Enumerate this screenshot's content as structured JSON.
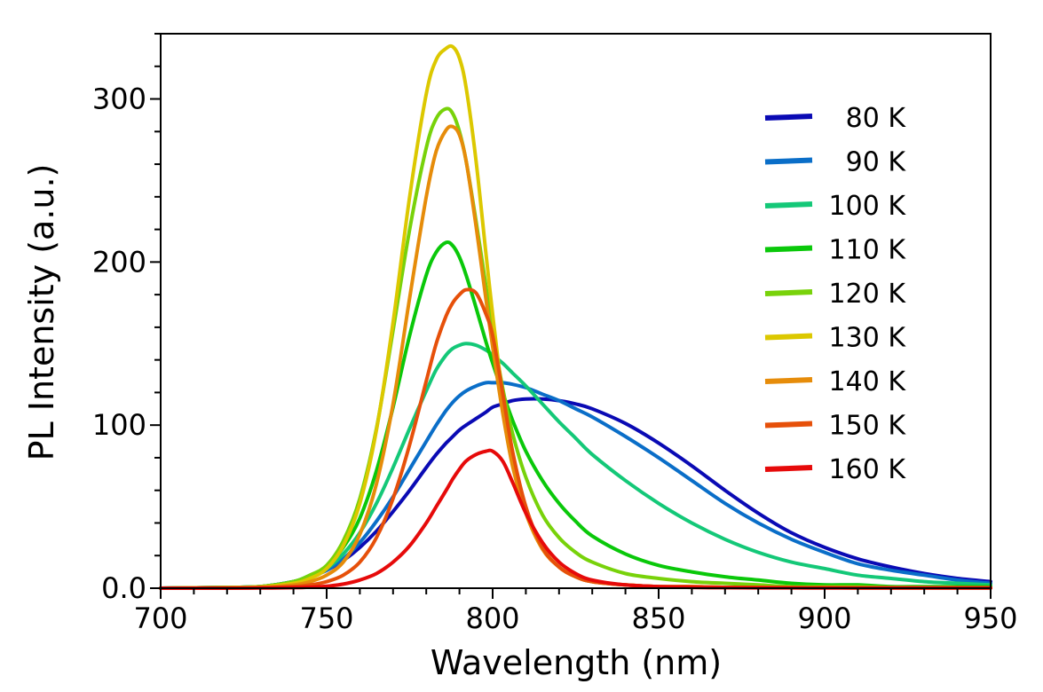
{
  "chart_data": {
    "type": "line",
    "title": "",
    "xlabel": "Wavelength (nm)",
    "ylabel": "PL Intensity (a.u.)",
    "xlim": [
      700,
      950
    ],
    "ylim": [
      0,
      340
    ],
    "x_ticks": [
      700,
      750,
      800,
      850,
      900,
      950
    ],
    "x_tick_labels": [
      "700",
      "750",
      "800",
      "850",
      "900",
      "950"
    ],
    "x_minor_step": 10,
    "y_ticks": [
      0,
      100,
      200,
      300
    ],
    "y_tick_labels": [
      "0.0",
      "100",
      "200",
      "300"
    ],
    "y_minor_step": 20,
    "grid": false,
    "legend_position": "top-right",
    "x": [
      700,
      720,
      730,
      740,
      745,
      750,
      755,
      760,
      765,
      770,
      775,
      780,
      783,
      786,
      788,
      790,
      792,
      795,
      798,
      800,
      803,
      806,
      810,
      815,
      820,
      825,
      830,
      840,
      850,
      860,
      870,
      880,
      890,
      900,
      910,
      920,
      930,
      940,
      950
    ],
    "series": [
      {
        "name": "80 K",
        "color": "#0a0ab4",
        "values": [
          0,
          0.5,
          1,
          4,
          7,
          11,
          17,
          25,
          35,
          47,
          60,
          74,
          82,
          89,
          93,
          97,
          100,
          104,
          108,
          111,
          113,
          115,
          116,
          116,
          115,
          113,
          110,
          101,
          89,
          75,
          60,
          46,
          34,
          25,
          18,
          13,
          9,
          6,
          4
        ]
      },
      {
        "name": "90 K",
        "color": "#0a6ec8",
        "values": [
          0,
          0.5,
          1,
          4,
          7,
          11,
          18,
          28,
          41,
          56,
          73,
          90,
          100,
          109,
          114,
          118,
          121,
          124,
          126,
          126,
          126,
          125,
          123,
          119,
          115,
          110,
          105,
          93,
          80,
          66,
          52,
          40,
          30,
          22,
          15,
          11,
          8,
          5,
          3
        ]
      },
      {
        "name": "100 K",
        "color": "#14c878",
        "values": [
          0,
          0.5,
          1,
          4,
          7,
          12,
          21,
          34,
          52,
          74,
          98,
          121,
          134,
          143,
          147,
          149,
          150,
          149,
          146,
          143,
          138,
          132,
          124,
          113,
          102,
          92,
          82,
          66,
          52,
          40,
          30,
          22,
          16,
          12,
          8,
          6,
          4,
          3,
          2
        ]
      },
      {
        "name": "110 K",
        "color": "#0ac80a",
        "values": [
          0,
          0.5,
          1,
          4,
          8,
          13,
          25,
          43,
          72,
          111,
          155,
          192,
          206,
          212,
          210,
          203,
          192,
          172,
          151,
          138,
          120,
          103,
          84,
          66,
          52,
          41,
          32,
          21,
          14,
          10,
          7,
          5,
          3,
          2,
          2,
          1,
          1,
          1,
          1
        ]
      },
      {
        "name": "120 K",
        "color": "#78d20a",
        "values": [
          0,
          0.5,
          1,
          4,
          8,
          14,
          29,
          55,
          98,
          158,
          220,
          270,
          288,
          294,
          291,
          280,
          262,
          225,
          185,
          158,
          123,
          95,
          68,
          45,
          31,
          22,
          16,
          9,
          6,
          4,
          3,
          2,
          1,
          1,
          1,
          0.5,
          0.5,
          0.5,
          0.5
        ]
      },
      {
        "name": "130 K",
        "color": "#dcc800",
        "values": [
          0,
          0.3,
          0.8,
          3,
          6,
          12,
          26,
          52,
          97,
          163,
          240,
          303,
          324,
          331,
          332,
          325,
          307,
          262,
          205,
          168,
          118,
          80,
          48,
          25,
          13,
          7,
          4,
          2,
          1,
          1,
          0.5,
          0.5,
          0.3,
          0.3,
          0.2,
          0.2,
          0.2,
          0.2,
          0.2
        ]
      },
      {
        "name": "140 K",
        "color": "#e68c0a",
        "values": [
          0,
          0.2,
          0.5,
          2,
          4,
          8,
          16,
          33,
          64,
          113,
          178,
          240,
          268,
          281,
          283,
          278,
          262,
          222,
          177,
          148,
          108,
          75,
          46,
          24,
          13,
          7,
          4,
          2,
          1,
          1,
          0.5,
          0.5,
          0.3,
          0.3,
          0.2,
          0.2,
          0.2,
          0.2,
          0.2
        ]
      },
      {
        "name": "150 K",
        "color": "#e6500a",
        "values": [
          0,
          0.1,
          0.3,
          1,
          2,
          4,
          8,
          16,
          31,
          55,
          88,
          127,
          150,
          167,
          175,
          180,
          183,
          181,
          168,
          155,
          120,
          84,
          50,
          25,
          13,
          7,
          4,
          2,
          1,
          1,
          0.5,
          0.5,
          0.3,
          0.3,
          0.2,
          0.2,
          0.2,
          0.2,
          0.2
        ]
      },
      {
        "name": "160 K",
        "color": "#e60a0a",
        "values": [
          0,
          0,
          0.1,
          0.3,
          0.6,
          1.2,
          2.5,
          5,
          9,
          16,
          26,
          40,
          50,
          60,
          67,
          73,
          78,
          82,
          84,
          84,
          78,
          65,
          46,
          28,
          16,
          9,
          5,
          2,
          1,
          0.5,
          0.3,
          0.2,
          0.2,
          0.1,
          0.1,
          0.1,
          0.1,
          0.1,
          0.1
        ]
      }
    ]
  }
}
